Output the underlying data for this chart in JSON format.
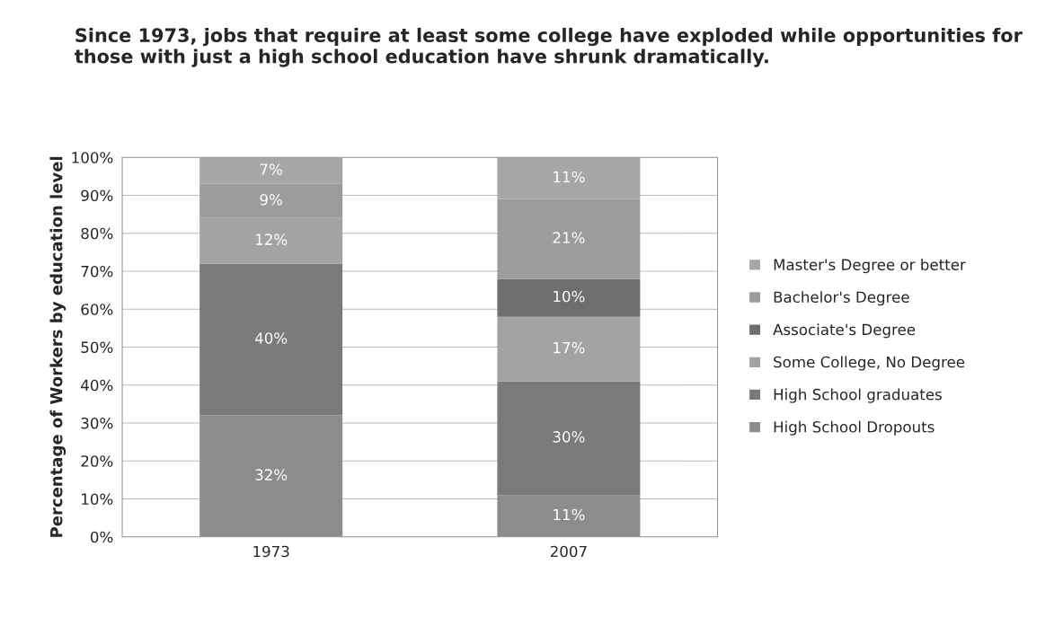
{
  "chart_data": {
    "type": "bar",
    "stacked": true,
    "title": "Since 1973, jobs that require at least some college have exploded while opportunities for those with just a high school education have shrunk dramatically.",
    "ylabel": "Percentage of Workers by education level",
    "categories": [
      "1973",
      "2007"
    ],
    "series": [
      {
        "name": "High School Dropouts",
        "color": "#8c8c8c",
        "values": [
          32,
          11
        ],
        "value_labels": [
          "32%",
          "11%"
        ]
      },
      {
        "name": "High School graduates",
        "color": "#7a7a7a",
        "values": [
          40,
          30
        ],
        "value_labels": [
          "40%",
          "30%"
        ]
      },
      {
        "name": "Some College, No Degree",
        "color": "#a3a3a3",
        "values": [
          12,
          17
        ],
        "value_labels": [
          "12%",
          "17%"
        ]
      },
      {
        "name": "Associate's Degree",
        "color": "#6e6e6e",
        "values": [
          null,
          10
        ],
        "value_labels": [
          null,
          "10%"
        ]
      },
      {
        "name": "Bachelor's Degree",
        "color": "#9c9c9c",
        "values": [
          9,
          21
        ],
        "value_labels": [
          "9%",
          "21%"
        ]
      },
      {
        "name": "Master's Degree or better",
        "color": "#a6a6a6",
        "values": [
          7,
          11
        ],
        "value_labels": [
          "7%",
          "11%"
        ]
      }
    ],
    "ylim": [
      0,
      100
    ],
    "yticks": [
      {
        "value": 0,
        "label": "0%"
      },
      {
        "value": 10,
        "label": "10%"
      },
      {
        "value": 20,
        "label": "20%"
      },
      {
        "value": 30,
        "label": "30%"
      },
      {
        "value": 40,
        "label": "40%"
      },
      {
        "value": 50,
        "label": "50%"
      },
      {
        "value": 60,
        "label": "60%"
      },
      {
        "value": 70,
        "label": "70%"
      },
      {
        "value": 80,
        "label": "80%"
      },
      {
        "value": 90,
        "label": "90%"
      },
      {
        "value": 100,
        "label": "100%"
      }
    ],
    "grid": "y",
    "legend": "right"
  }
}
